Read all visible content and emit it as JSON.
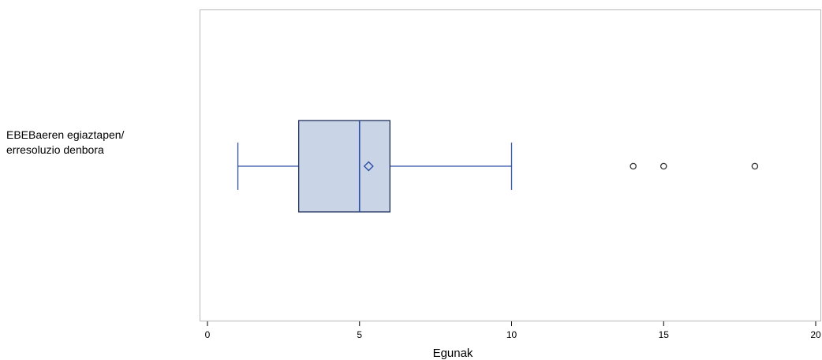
{
  "chart_data": {
    "type": "boxplot",
    "title": "",
    "xlabel": "Egunak",
    "ylabel": "",
    "xlim": [
      0,
      20
    ],
    "xticks": [
      "0",
      "5",
      "10",
      "15",
      "20"
    ],
    "grid": false,
    "categories": [
      {
        "label_lines": [
          "EBEBaeren egiaztapen/",
          "erresoluzio denbora"
        ],
        "min": 1,
        "q1": 3,
        "median": 5,
        "q3": 6,
        "max": 10,
        "mean": 5.3,
        "outliers": [
          14,
          15,
          18
        ]
      }
    ],
    "colors": {
      "box_fill": "#c9d5e7",
      "box_edge": "#1f2f5a",
      "whisker": "#2c4fa6",
      "mean_marker": "#2c4fa6",
      "outlier": "#333333",
      "frame": "#b8b8b8"
    }
  }
}
